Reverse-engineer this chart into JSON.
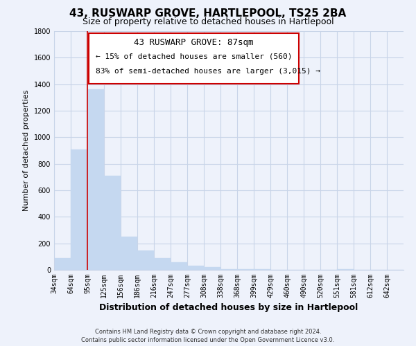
{
  "title": "43, RUSWARP GROVE, HARTLEPOOL, TS25 2BA",
  "subtitle": "Size of property relative to detached houses in Hartlepool",
  "xlabel": "Distribution of detached houses by size in Hartlepool",
  "ylabel": "Number of detached properties",
  "bins": [
    "34sqm",
    "64sqm",
    "95sqm",
    "125sqm",
    "156sqm",
    "186sqm",
    "216sqm",
    "247sqm",
    "277sqm",
    "308sqm",
    "338sqm",
    "368sqm",
    "399sqm",
    "429sqm",
    "460sqm",
    "490sqm",
    "520sqm",
    "551sqm",
    "581sqm",
    "612sqm",
    "642sqm"
  ],
  "values": [
    90,
    910,
    1360,
    710,
    250,
    145,
    90,
    55,
    30,
    20,
    5,
    5,
    5,
    0,
    0,
    0,
    0,
    5,
    0,
    0,
    0
  ],
  "bar_color": "#c5d8f0",
  "bar_edge_color": "#c5d8f0",
  "vline_color": "#cc0000",
  "vline_x_index": 2,
  "ylim": [
    0,
    1800
  ],
  "yticks": [
    0,
    200,
    400,
    600,
    800,
    1000,
    1200,
    1400,
    1600,
    1800
  ],
  "annotation_title": "43 RUSWARP GROVE: 87sqm",
  "annotation_line1": "← 15% of detached houses are smaller (560)",
  "annotation_line2": "83% of semi-detached houses are larger (3,015) →",
  "annotation_box_color": "#ffffff",
  "annotation_box_edge": "#cc0000",
  "footer_line1": "Contains HM Land Registry data © Crown copyright and database right 2024.",
  "footer_line2": "Contains public sector information licensed under the Open Government Licence v3.0.",
  "background_color": "#eef2fb",
  "grid_color": "#c8d4e8",
  "title_fontsize": 11,
  "subtitle_fontsize": 9,
  "xlabel_fontsize": 9,
  "ylabel_fontsize": 8,
  "tick_fontsize": 7,
  "annotation_title_fontsize": 9,
  "annotation_text_fontsize": 8,
  "footer_fontsize": 6
}
